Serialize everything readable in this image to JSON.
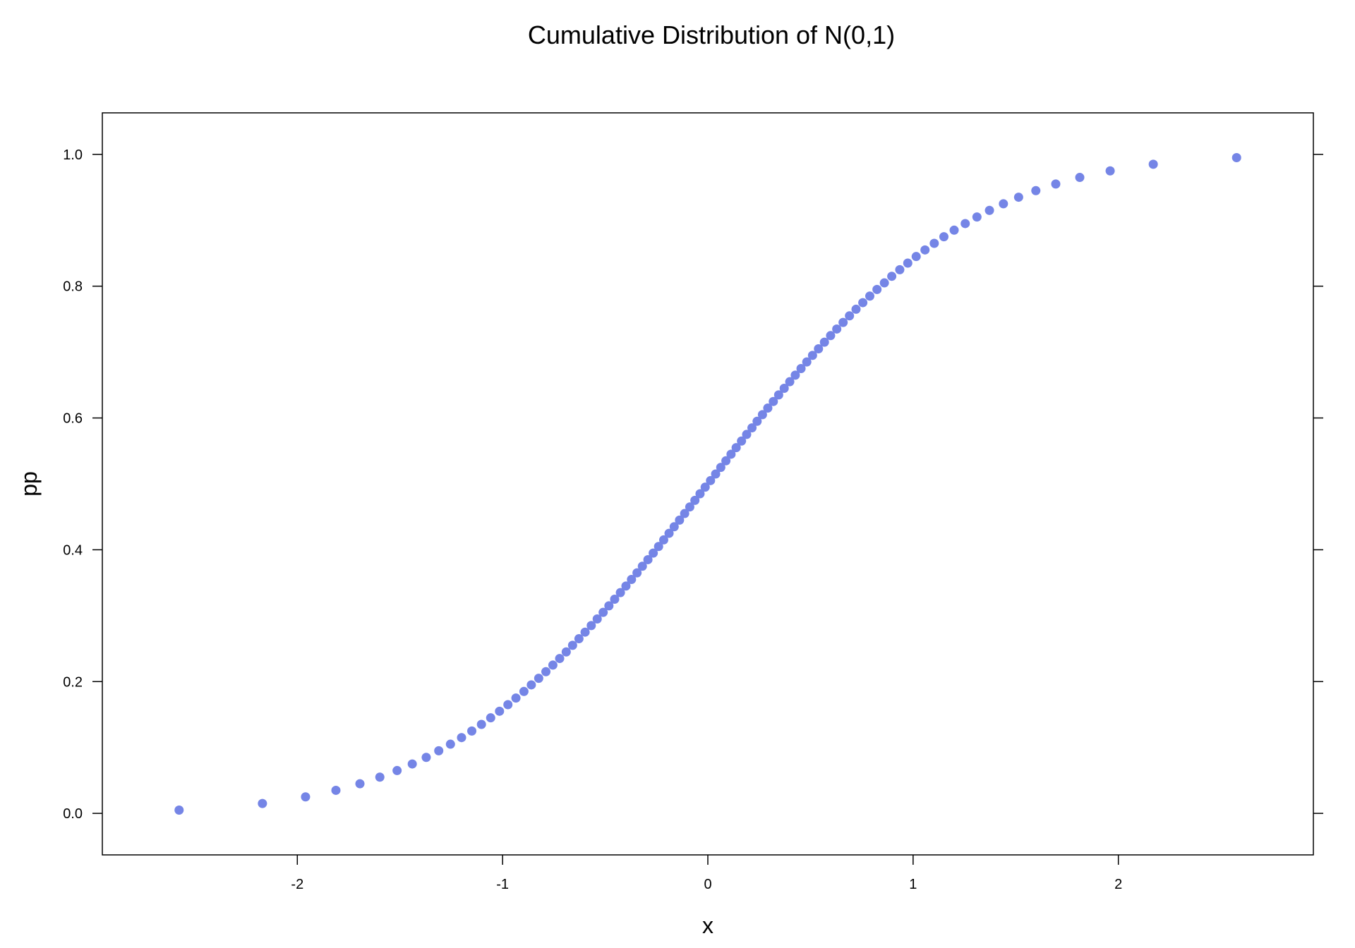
{
  "chart_data": {
    "type": "scatter",
    "title": "Cumulative Distribution of N(0,1)",
    "xlabel": "x",
    "ylabel": "pp",
    "xlim": [
      -2.95,
      2.95
    ],
    "ylim": [
      -0.063,
      1.063
    ],
    "x_ticks": [
      {
        "value": -2,
        "label": "-2"
      },
      {
        "value": -1,
        "label": "-1"
      },
      {
        "value": 0,
        "label": "0"
      },
      {
        "value": 1,
        "label": "1"
      },
      {
        "value": 2,
        "label": "2"
      }
    ],
    "y_ticks": [
      {
        "value": 0.0,
        "label": "0.0"
      },
      {
        "value": 0.2,
        "label": "0.2"
      },
      {
        "value": 0.4,
        "label": "0.4"
      },
      {
        "value": 0.6,
        "label": "0.6"
      },
      {
        "value": 0.8,
        "label": "0.8"
      },
      {
        "value": 1.0,
        "label": "1.0"
      }
    ],
    "point_color": "#7585E6",
    "grid": false,
    "legend": "none",
    "series": [
      {
        "x": [
          -2.576,
          -2.17,
          -1.96,
          -1.812,
          -1.695,
          -1.598,
          -1.514,
          -1.44,
          -1.372,
          -1.311,
          -1.254,
          -1.2,
          -1.15,
          -1.103,
          -1.058,
          -1.015,
          -0.974,
          -0.935,
          -0.896,
          -0.86,
          -0.824,
          -0.789,
          -0.755,
          -0.722,
          -0.69,
          -0.659,
          -0.628,
          -0.598,
          -0.568,
          -0.539,
          -0.51,
          -0.482,
          -0.454,
          -0.426,
          -0.399,
          -0.372,
          -0.345,
          -0.319,
          -0.292,
          -0.266,
          -0.24,
          -0.215,
          -0.189,
          -0.164,
          -0.138,
          -0.113,
          -0.088,
          -0.063,
          -0.038,
          -0.013,
          0.013,
          0.038,
          0.063,
          0.088,
          0.113,
          0.138,
          0.164,
          0.189,
          0.215,
          0.24,
          0.266,
          0.292,
          0.319,
          0.345,
          0.372,
          0.399,
          0.426,
          0.454,
          0.482,
          0.51,
          0.539,
          0.568,
          0.598,
          0.628,
          0.659,
          0.69,
          0.722,
          0.755,
          0.789,
          0.824,
          0.86,
          0.896,
          0.935,
          0.974,
          1.015,
          1.058,
          1.103,
          1.15,
          1.2,
          1.254,
          1.311,
          1.372,
          1.44,
          1.514,
          1.598,
          1.695,
          1.812,
          1.96,
          2.17,
          2.576
        ],
        "y": [
          0.005,
          0.015,
          0.025,
          0.035,
          0.045,
          0.055,
          0.065,
          0.075,
          0.085,
          0.095,
          0.105,
          0.115,
          0.125,
          0.135,
          0.145,
          0.155,
          0.165,
          0.175,
          0.185,
          0.195,
          0.205,
          0.215,
          0.225,
          0.235,
          0.245,
          0.255,
          0.265,
          0.275,
          0.285,
          0.295,
          0.305,
          0.315,
          0.325,
          0.335,
          0.345,
          0.355,
          0.365,
          0.375,
          0.385,
          0.395,
          0.405,
          0.415,
          0.425,
          0.435,
          0.445,
          0.455,
          0.465,
          0.475,
          0.485,
          0.495,
          0.505,
          0.515,
          0.525,
          0.535,
          0.545,
          0.555,
          0.565,
          0.575,
          0.585,
          0.595,
          0.605,
          0.615,
          0.625,
          0.635,
          0.645,
          0.655,
          0.665,
          0.675,
          0.685,
          0.695,
          0.705,
          0.715,
          0.725,
          0.735,
          0.745,
          0.755,
          0.765,
          0.775,
          0.785,
          0.795,
          0.805,
          0.815,
          0.825,
          0.835,
          0.845,
          0.855,
          0.865,
          0.875,
          0.885,
          0.895,
          0.905,
          0.915,
          0.925,
          0.935,
          0.945,
          0.955,
          0.965,
          0.975,
          0.985,
          0.995
        ]
      }
    ]
  }
}
